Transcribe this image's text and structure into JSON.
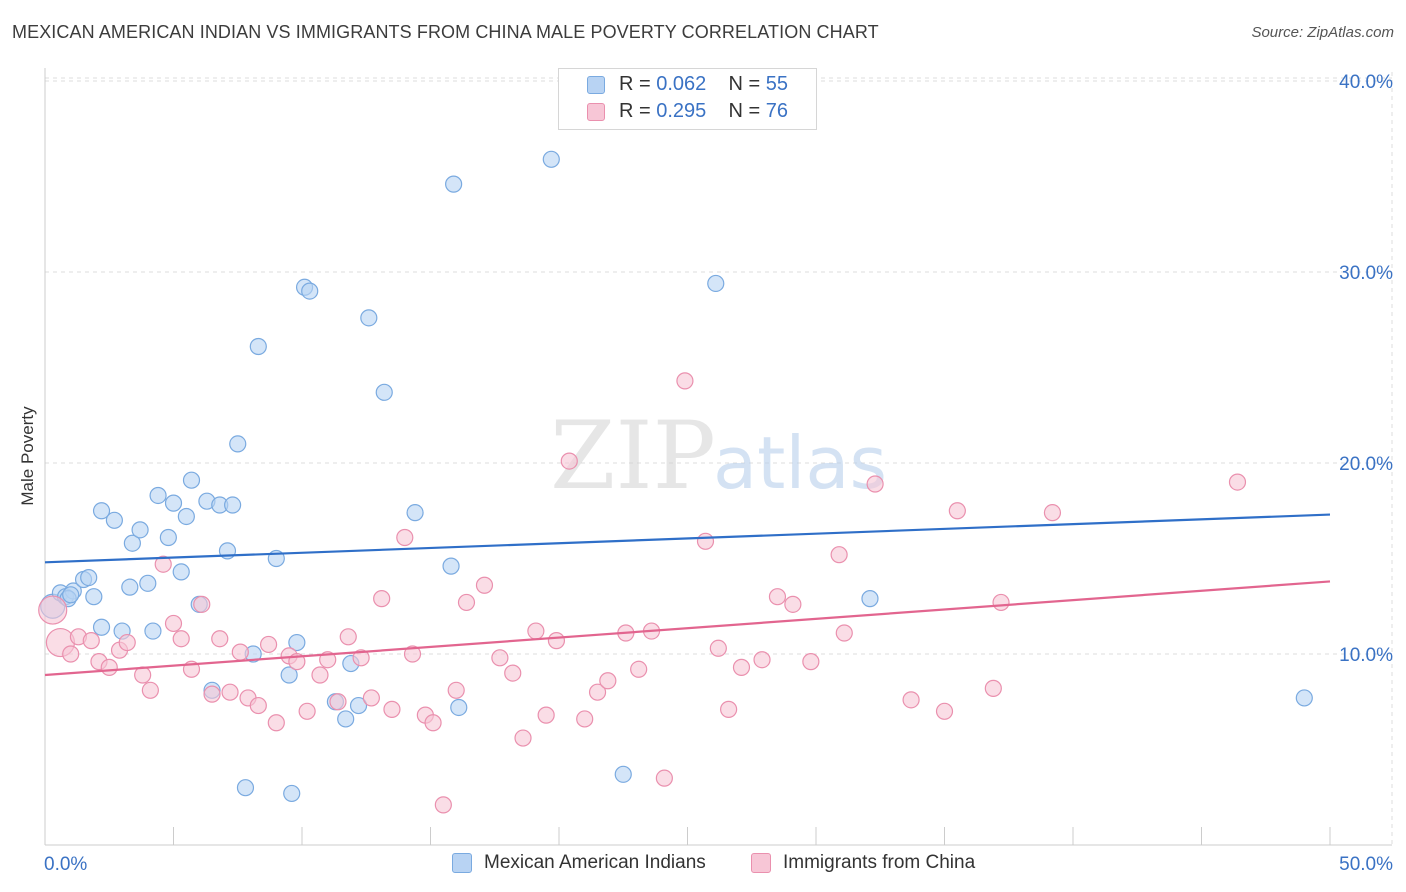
{
  "title": "MEXICAN AMERICAN INDIAN VS IMMIGRANTS FROM CHINA MALE POVERTY CORRELATION CHART",
  "source": "Source: ZipAtlas.com",
  "watermark": {
    "zip": "ZIP",
    "atlas": "atlas"
  },
  "legend": {
    "series1": {
      "r_label": "R =",
      "r_value": "0.062",
      "n_label": "N =",
      "n_value": "55"
    },
    "series2": {
      "r_label": "R =",
      "r_value": "0.295",
      "n_label": "N =",
      "n_value": "76"
    }
  },
  "colors": {
    "blue_fill": "#b8d3f3",
    "blue_stroke": "#7aaae0",
    "blue_line": "#2f6fc8",
    "pink_fill": "#f7c6d6",
    "pink_stroke": "#ea90ae",
    "pink_line": "#e2658f",
    "tick_label": "#3a72c4",
    "grid": "#dcdcdc"
  },
  "chart_data": {
    "type": "scatter",
    "ylabel": "Male Poverty",
    "xlim": [
      0,
      50
    ],
    "ylim": [
      0,
      40
    ],
    "y_ticks": [
      {
        "value": 10,
        "label": "10.0%"
      },
      {
        "value": 20,
        "label": "20.0%"
      },
      {
        "value": 30,
        "label": "30.0%"
      },
      {
        "value": 40,
        "label": "40.0%"
      }
    ],
    "x_tick_labels": [
      {
        "value": 0,
        "label": "0.0%"
      },
      {
        "value": 50,
        "label": "50.0%"
      }
    ],
    "x_minor_ticks": [
      0,
      5,
      10,
      15,
      20,
      25,
      30,
      35,
      40,
      45,
      50
    ],
    "grid": true,
    "legend_position": "top-center",
    "series": [
      {
        "name": "Mexican American Indians",
        "color": "blue",
        "trend": {
          "x": [
            0,
            50
          ],
          "y": [
            14.8,
            17.3
          ]
        },
        "points": [
          [
            0.3,
            12.5
          ],
          [
            0.6,
            13.2
          ],
          [
            0.8,
            13.0
          ],
          [
            1.1,
            13.3
          ],
          [
            1.5,
            13.9
          ],
          [
            1.7,
            14.0
          ],
          [
            1.9,
            13.0
          ],
          [
            2.2,
            17.5
          ],
          [
            2.7,
            17.0
          ],
          [
            2.2,
            11.4
          ],
          [
            3.0,
            11.2
          ],
          [
            3.3,
            13.5
          ],
          [
            3.4,
            15.8
          ],
          [
            3.7,
            16.5
          ],
          [
            4.0,
            13.7
          ],
          [
            4.2,
            11.2
          ],
          [
            4.4,
            18.3
          ],
          [
            4.8,
            16.1
          ],
          [
            5.0,
            17.9
          ],
          [
            5.3,
            14.3
          ],
          [
            5.5,
            17.2
          ],
          [
            5.7,
            19.1
          ],
          [
            6.0,
            12.6
          ],
          [
            6.3,
            18.0
          ],
          [
            6.5,
            8.1
          ],
          [
            6.8,
            17.8
          ],
          [
            7.1,
            15.4
          ],
          [
            7.3,
            17.8
          ],
          [
            7.5,
            21.0
          ],
          [
            7.8,
            3.0
          ],
          [
            8.1,
            10.0
          ],
          [
            8.3,
            26.1
          ],
          [
            9.0,
            15.0
          ],
          [
            9.6,
            2.7
          ],
          [
            9.5,
            8.9
          ],
          [
            9.8,
            10.6
          ],
          [
            10.1,
            29.2
          ],
          [
            10.3,
            29.0
          ],
          [
            11.3,
            7.5
          ],
          [
            11.7,
            6.6
          ],
          [
            11.9,
            9.5
          ],
          [
            12.2,
            7.3
          ],
          [
            12.6,
            27.6
          ],
          [
            13.2,
            23.7
          ],
          [
            14.4,
            17.4
          ],
          [
            15.8,
            14.6
          ],
          [
            15.9,
            34.6
          ],
          [
            16.1,
            7.2
          ],
          [
            19.7,
            35.9
          ],
          [
            22.5,
            3.7
          ],
          [
            26.1,
            29.4
          ],
          [
            32.1,
            12.9
          ],
          [
            49.0,
            7.7
          ],
          [
            0.9,
            12.9
          ],
          [
            1.0,
            13.1
          ]
        ]
      },
      {
        "name": "Immigrants from China",
        "color": "pink",
        "trend": {
          "x": [
            0,
            50
          ],
          "y": [
            8.9,
            13.8
          ]
        },
        "points": [
          [
            0.3,
            12.3
          ],
          [
            0.6,
            10.6
          ],
          [
            1.0,
            10.0
          ],
          [
            1.3,
            10.9
          ],
          [
            1.8,
            10.7
          ],
          [
            2.1,
            9.6
          ],
          [
            2.5,
            9.3
          ],
          [
            2.9,
            10.2
          ],
          [
            3.2,
            10.6
          ],
          [
            3.8,
            8.9
          ],
          [
            4.1,
            8.1
          ],
          [
            4.6,
            14.7
          ],
          [
            5.0,
            11.6
          ],
          [
            5.3,
            10.8
          ],
          [
            5.7,
            9.2
          ],
          [
            6.1,
            12.6
          ],
          [
            6.5,
            7.9
          ],
          [
            6.8,
            10.8
          ],
          [
            7.2,
            8.0
          ],
          [
            7.6,
            10.1
          ],
          [
            7.9,
            7.7
          ],
          [
            8.3,
            7.3
          ],
          [
            8.7,
            10.5
          ],
          [
            9.0,
            6.4
          ],
          [
            9.5,
            9.9
          ],
          [
            9.8,
            9.6
          ],
          [
            10.2,
            7.0
          ],
          [
            10.7,
            8.9
          ],
          [
            11.0,
            9.7
          ],
          [
            11.4,
            7.5
          ],
          [
            11.8,
            10.9
          ],
          [
            12.3,
            9.8
          ],
          [
            12.7,
            7.7
          ],
          [
            13.1,
            12.9
          ],
          [
            13.5,
            7.1
          ],
          [
            14.0,
            16.1
          ],
          [
            14.3,
            10.0
          ],
          [
            14.8,
            6.8
          ],
          [
            15.1,
            6.4
          ],
          [
            15.5,
            2.1
          ],
          [
            16.0,
            8.1
          ],
          [
            16.4,
            12.7
          ],
          [
            17.1,
            13.6
          ],
          [
            17.7,
            9.8
          ],
          [
            18.2,
            9.0
          ],
          [
            18.6,
            5.6
          ],
          [
            19.1,
            11.2
          ],
          [
            19.5,
            6.8
          ],
          [
            19.9,
            10.7
          ],
          [
            20.4,
            20.1
          ],
          [
            21.0,
            6.6
          ],
          [
            21.5,
            8.0
          ],
          [
            21.9,
            8.6
          ],
          [
            22.6,
            11.1
          ],
          [
            23.1,
            9.2
          ],
          [
            23.6,
            11.2
          ],
          [
            24.1,
            3.5
          ],
          [
            24.9,
            24.3
          ],
          [
            25.7,
            15.9
          ],
          [
            26.2,
            10.3
          ],
          [
            26.6,
            7.1
          ],
          [
            27.1,
            9.3
          ],
          [
            27.9,
            9.7
          ],
          [
            28.5,
            13.0
          ],
          [
            29.1,
            12.6
          ],
          [
            29.8,
            9.6
          ],
          [
            30.9,
            15.2
          ],
          [
            31.1,
            11.1
          ],
          [
            32.3,
            18.9
          ],
          [
            33.7,
            7.6
          ],
          [
            35.0,
            7.0
          ],
          [
            35.5,
            17.5
          ],
          [
            36.9,
            8.2
          ],
          [
            37.2,
            12.7
          ],
          [
            39.2,
            17.4
          ],
          [
            46.4,
            19.0
          ]
        ]
      }
    ]
  }
}
